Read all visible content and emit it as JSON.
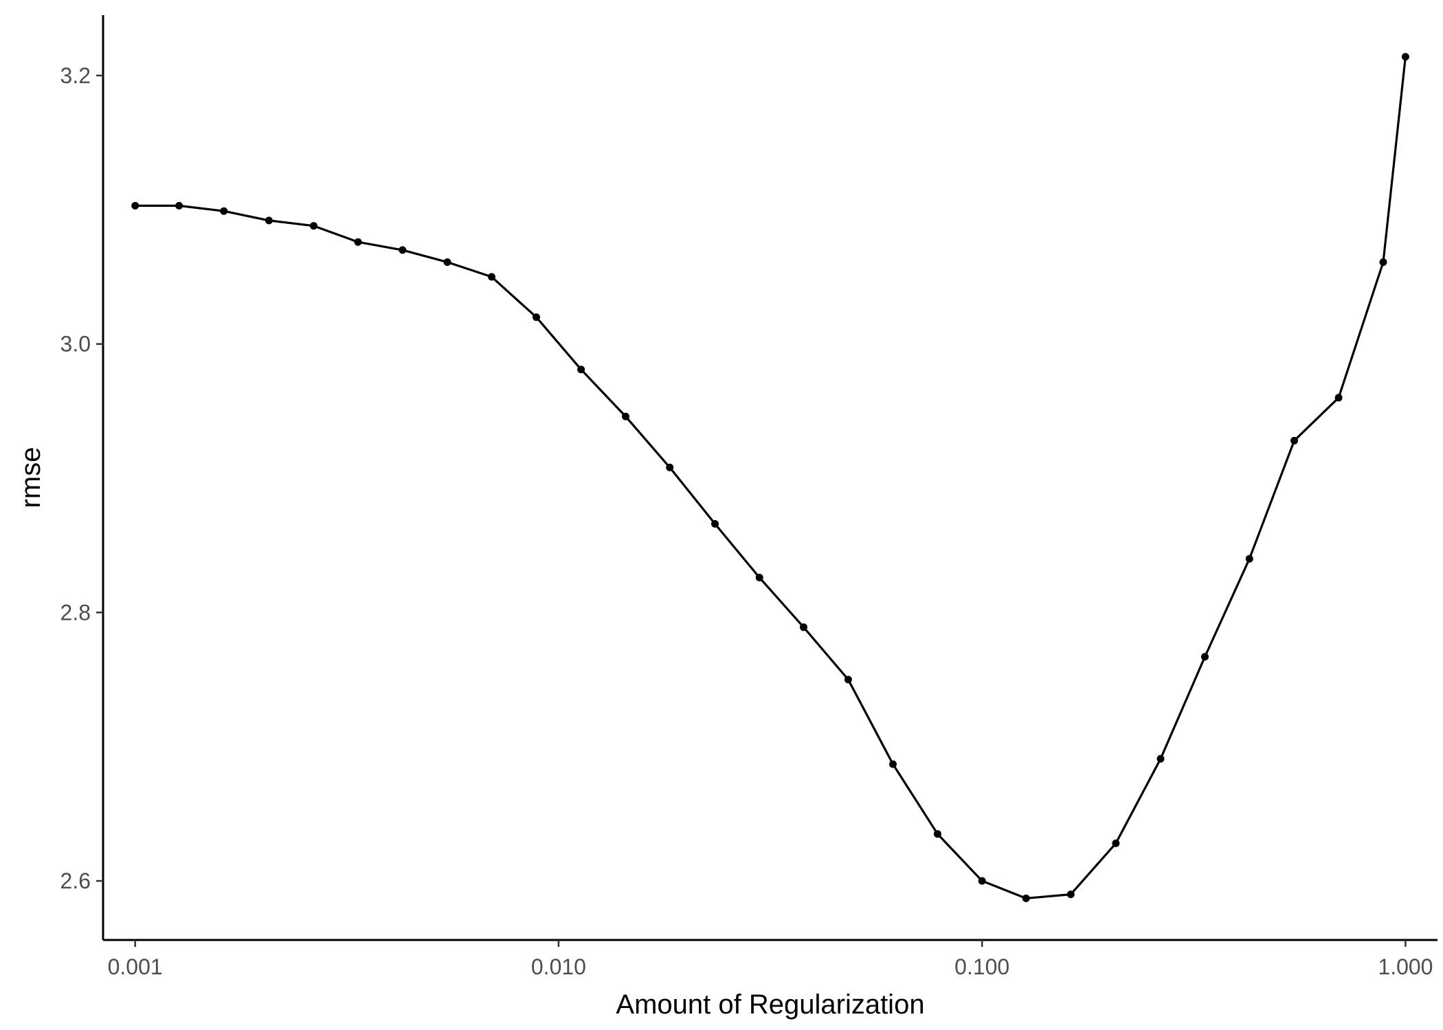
{
  "chart_data": {
    "type": "line",
    "title": "",
    "xlabel": "Amount of Regularization",
    "ylabel": "rmse",
    "x_scale": "log10",
    "xlim": [
      0.00084,
      1.19
    ],
    "ylim": [
      2.556,
      3.245
    ],
    "x_ticks": [
      {
        "value": 0.001,
        "label": "0.001"
      },
      {
        "value": 0.01,
        "label": "0.010"
      },
      {
        "value": 0.1,
        "label": "0.100"
      },
      {
        "value": 1.0,
        "label": "1.000"
      }
    ],
    "y_ticks": [
      {
        "value": 2.6,
        "label": "2.6"
      },
      {
        "value": 2.8,
        "label": "2.8"
      },
      {
        "value": 3.0,
        "label": "3.0"
      },
      {
        "value": 3.2,
        "label": "3.2"
      }
    ],
    "grid": false,
    "legend": "none",
    "colors": {
      "line": "#000000",
      "point": "#000000",
      "axis": "#000000"
    },
    "series": [
      {
        "x": [
          0.001,
          0.00127,
          0.00162,
          0.00207,
          0.00264,
          0.00336,
          0.00428,
          0.00546,
          0.00695,
          0.00886,
          0.0113,
          0.0144,
          0.0183,
          0.0234,
          0.0298,
          0.0379,
          0.0483,
          0.0616,
          0.0785,
          0.1,
          0.127,
          0.162,
          0.207,
          0.264,
          0.336,
          0.428,
          0.546,
          0.695,
          0.886,
          1.0
        ],
        "y": [
          3.103,
          3.103,
          3.099,
          3.092,
          3.088,
          3.076,
          3.07,
          3.061,
          3.05,
          3.02,
          2.981,
          2.946,
          2.908,
          2.866,
          2.826,
          2.789,
          2.75,
          2.687,
          2.635,
          2.6,
          2.587,
          2.59,
          2.628,
          2.691,
          2.767,
          2.84,
          2.928,
          2.96,
          3.061,
          3.214
        ]
      }
    ]
  }
}
